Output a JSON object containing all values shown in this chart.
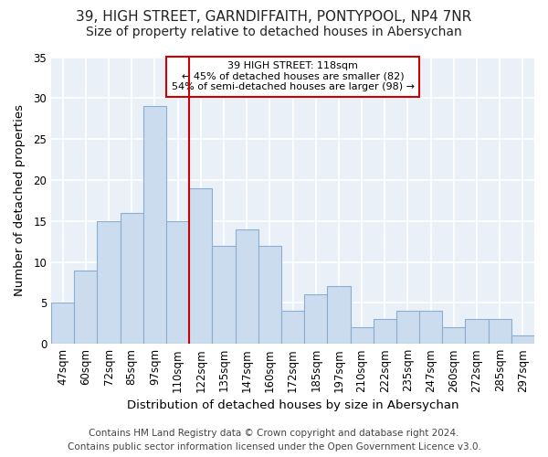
{
  "title1": "39, HIGH STREET, GARNDIFFAITH, PONTYPOOL, NP4 7NR",
  "title2": "Size of property relative to detached houses in Abersychan",
  "xlabel": "Distribution of detached houses by size in Abersychan",
  "ylabel": "Number of detached properties",
  "categories": [
    "47sqm",
    "60sqm",
    "72sqm",
    "85sqm",
    "97sqm",
    "110sqm",
    "122sqm",
    "135sqm",
    "147sqm",
    "160sqm",
    "172sqm",
    "185sqm",
    "197sqm",
    "210sqm",
    "222sqm",
    "235sqm",
    "247sqm",
    "260sqm",
    "272sqm",
    "285sqm",
    "297sqm"
  ],
  "values": [
    5,
    9,
    15,
    16,
    29,
    15,
    19,
    12,
    14,
    12,
    4,
    6,
    7,
    2,
    3,
    4,
    4,
    2,
    3,
    3,
    1
  ],
  "bar_color": "#ccdcef",
  "bar_edge_color": "#89aed0",
  "highlight_index": 6,
  "vline_color": "#cc0000",
  "annotation_line1": "39 HIGH STREET: 118sqm",
  "annotation_line2": "← 45% of detached houses are smaller (82)",
  "annotation_line3": "54% of semi-detached houses are larger (98) →",
  "annotation_box_color": "#cc0000",
  "ylim": [
    0,
    35
  ],
  "yticks": [
    0,
    5,
    10,
    15,
    20,
    25,
    30,
    35
  ],
  "footer_line1": "Contains HM Land Registry data © Crown copyright and database right 2024.",
  "footer_line2": "Contains public sector information licensed under the Open Government Licence v3.0.",
  "bg_color": "#ffffff",
  "plot_bg_color": "#eaf0f8",
  "grid_color": "#ffffff",
  "title_fontsize": 11,
  "subtitle_fontsize": 10,
  "axis_label_fontsize": 9.5,
  "tick_fontsize": 8.5,
  "footer_fontsize": 7.5
}
